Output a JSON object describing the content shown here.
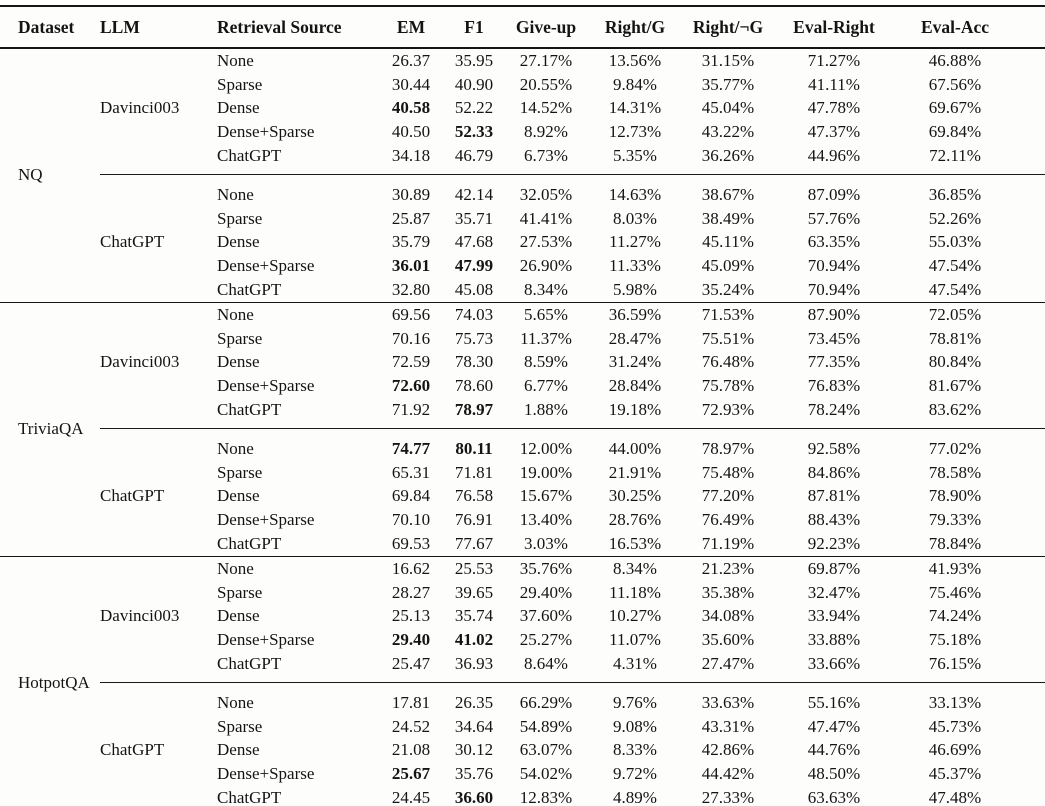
{
  "table": {
    "columns": [
      "Dataset",
      "LLM",
      "Retrieval Source",
      "EM",
      "F1",
      "Give-up",
      "Right/G",
      "Right/¬G",
      "Eval-Right",
      "Eval-Acc"
    ],
    "metric_keys": [
      "em",
      "f1",
      "give_up",
      "right_g",
      "right_ng",
      "eval_right",
      "eval_acc"
    ],
    "sections": [
      {
        "dataset": "NQ",
        "groups": [
          {
            "llm": "Davinci003",
            "rows": [
              {
                "source": "None",
                "em": "26.37",
                "f1": "35.95",
                "give_up": "27.17%",
                "right_g": "13.56%",
                "right_ng": "31.15%",
                "eval_right": "71.27%",
                "eval_acc": "46.88%",
                "bold": []
              },
              {
                "source": "Sparse",
                "em": "30.44",
                "f1": "40.90",
                "give_up": "20.55%",
                "right_g": "9.84%",
                "right_ng": "35.77%",
                "eval_right": "41.11%",
                "eval_acc": "67.56%",
                "bold": []
              },
              {
                "source": "Dense",
                "em": "40.58",
                "f1": "52.22",
                "give_up": "14.52%",
                "right_g": "14.31%",
                "right_ng": "45.04%",
                "eval_right": "47.78%",
                "eval_acc": "69.67%",
                "bold": [
                  "em"
                ]
              },
              {
                "source": "Dense+Sparse",
                "em": "40.50",
                "f1": "52.33",
                "give_up": "8.92%",
                "right_g": "12.73%",
                "right_ng": "43.22%",
                "eval_right": "47.37%",
                "eval_acc": "69.84%",
                "bold": [
                  "f1"
                ]
              },
              {
                "source": "ChatGPT",
                "em": "34.18",
                "f1": "46.79",
                "give_up": "6.73%",
                "right_g": "5.35%",
                "right_ng": "36.26%",
                "eval_right": "44.96%",
                "eval_acc": "72.11%",
                "bold": []
              }
            ]
          },
          {
            "llm": "ChatGPT",
            "rows": [
              {
                "source": "None",
                "em": "30.89",
                "f1": "42.14",
                "give_up": "32.05%",
                "right_g": "14.63%",
                "right_ng": "38.67%",
                "eval_right": "87.09%",
                "eval_acc": "36.85%",
                "bold": []
              },
              {
                "source": "Sparse",
                "em": "25.87",
                "f1": "35.71",
                "give_up": "41.41%",
                "right_g": "8.03%",
                "right_ng": "38.49%",
                "eval_right": "57.76%",
                "eval_acc": "52.26%",
                "bold": []
              },
              {
                "source": "Dense",
                "em": "35.79",
                "f1": "47.68",
                "give_up": "27.53%",
                "right_g": "11.27%",
                "right_ng": "45.11%",
                "eval_right": "63.35%",
                "eval_acc": "55.03%",
                "bold": []
              },
              {
                "source": "Dense+Sparse",
                "em": "36.01",
                "f1": "47.99",
                "give_up": "26.90%",
                "right_g": "11.33%",
                "right_ng": "45.09%",
                "eval_right": "70.94%",
                "eval_acc": "47.54%",
                "bold": [
                  "em",
                  "f1"
                ]
              },
              {
                "source": "ChatGPT",
                "em": "32.80",
                "f1": "45.08",
                "give_up": "8.34%",
                "right_g": "5.98%",
                "right_ng": "35.24%",
                "eval_right": "70.94%",
                "eval_acc": "47.54%",
                "bold": []
              }
            ]
          }
        ]
      },
      {
        "dataset": "TriviaQA",
        "groups": [
          {
            "llm": "Davinci003",
            "rows": [
              {
                "source": "None",
                "em": "69.56",
                "f1": "74.03",
                "give_up": "5.65%",
                "right_g": "36.59%",
                "right_ng": "71.53%",
                "eval_right": "87.90%",
                "eval_acc": "72.05%",
                "bold": []
              },
              {
                "source": "Sparse",
                "em": "70.16",
                "f1": "75.73",
                "give_up": "11.37%",
                "right_g": "28.47%",
                "right_ng": "75.51%",
                "eval_right": "73.45%",
                "eval_acc": "78.81%",
                "bold": []
              },
              {
                "source": "Dense",
                "em": "72.59",
                "f1": "78.30",
                "give_up": "8.59%",
                "right_g": "31.24%",
                "right_ng": "76.48%",
                "eval_right": "77.35%",
                "eval_acc": "80.84%",
                "bold": []
              },
              {
                "source": "Dense+Sparse",
                "em": "72.60",
                "f1": "78.60",
                "give_up": "6.77%",
                "right_g": "28.84%",
                "right_ng": "75.78%",
                "eval_right": "76.83%",
                "eval_acc": "81.67%",
                "bold": [
                  "em"
                ]
              },
              {
                "source": "ChatGPT",
                "em": "71.92",
                "f1": "78.97",
                "give_up": "1.88%",
                "right_g": "19.18%",
                "right_ng": "72.93%",
                "eval_right": "78.24%",
                "eval_acc": "83.62%",
                "bold": [
                  "f1"
                ]
              }
            ]
          },
          {
            "llm": "ChatGPT",
            "rows": [
              {
                "source": "None",
                "em": "74.77",
                "f1": "80.11",
                "give_up": "12.00%",
                "right_g": "44.00%",
                "right_ng": "78.97%",
                "eval_right": "92.58%",
                "eval_acc": "77.02%",
                "bold": [
                  "em",
                  "f1"
                ]
              },
              {
                "source": "Sparse",
                "em": "65.31",
                "f1": "71.81",
                "give_up": "19.00%",
                "right_g": "21.91%",
                "right_ng": "75.48%",
                "eval_right": "84.86%",
                "eval_acc": "78.58%",
                "bold": []
              },
              {
                "source": "Dense",
                "em": "69.84",
                "f1": "76.58",
                "give_up": "15.67%",
                "right_g": "30.25%",
                "right_ng": "77.20%",
                "eval_right": "87.81%",
                "eval_acc": "78.90%",
                "bold": []
              },
              {
                "source": "Dense+Sparse",
                "em": "70.10",
                "f1": "76.91",
                "give_up": "13.40%",
                "right_g": "28.76%",
                "right_ng": "76.49%",
                "eval_right": "88.43%",
                "eval_acc": "79.33%",
                "bold": []
              },
              {
                "source": "ChatGPT",
                "em": "69.53",
                "f1": "77.67",
                "give_up": "3.03%",
                "right_g": "16.53%",
                "right_ng": "71.19%",
                "eval_right": "92.23%",
                "eval_acc": "78.84%",
                "bold": []
              }
            ]
          }
        ]
      },
      {
        "dataset": "HotpotQA",
        "groups": [
          {
            "llm": "Davinci003",
            "rows": [
              {
                "source": "None",
                "em": "16.62",
                "f1": "25.53",
                "give_up": "35.76%",
                "right_g": "8.34%",
                "right_ng": "21.23%",
                "eval_right": "69.87%",
                "eval_acc": "41.93%",
                "bold": []
              },
              {
                "source": "Sparse",
                "em": "28.27",
                "f1": "39.65",
                "give_up": "29.40%",
                "right_g": "11.18%",
                "right_ng": "35.38%",
                "eval_right": "32.47%",
                "eval_acc": "75.46%",
                "bold": []
              },
              {
                "source": "Dense",
                "em": "25.13",
                "f1": "35.74",
                "give_up": "37.60%",
                "right_g": "10.27%",
                "right_ng": "34.08%",
                "eval_right": "33.94%",
                "eval_acc": "74.24%",
                "bold": []
              },
              {
                "source": "Dense+Sparse",
                "em": "29.40",
                "f1": "41.02",
                "give_up": "25.27%",
                "right_g": "11.07%",
                "right_ng": "35.60%",
                "eval_right": "33.88%",
                "eval_acc": "75.18%",
                "bold": [
                  "em",
                  "f1"
                ]
              },
              {
                "source": "ChatGPT",
                "em": "25.47",
                "f1": "36.93",
                "give_up": "8.64%",
                "right_g": "4.31%",
                "right_ng": "27.47%",
                "eval_right": "33.66%",
                "eval_acc": "76.15%",
                "bold": []
              }
            ]
          },
          {
            "llm": "ChatGPT",
            "rows": [
              {
                "source": "None",
                "em": "17.81",
                "f1": "26.35",
                "give_up": "66.29%",
                "right_g": "9.76%",
                "right_ng": "33.63%",
                "eval_right": "55.16%",
                "eval_acc": "33.13%",
                "bold": []
              },
              {
                "source": "Sparse",
                "em": "24.52",
                "f1": "34.64",
                "give_up": "54.89%",
                "right_g": "9.08%",
                "right_ng": "43.31%",
                "eval_right": "47.47%",
                "eval_acc": "45.73%",
                "bold": []
              },
              {
                "source": "Dense",
                "em": "21.08",
                "f1": "30.12",
                "give_up": "63.07%",
                "right_g": "8.33%",
                "right_ng": "42.86%",
                "eval_right": "44.76%",
                "eval_acc": "46.69%",
                "bold": []
              },
              {
                "source": "Dense+Sparse",
                "em": "25.67",
                "f1": "35.76",
                "give_up": "54.02%",
                "right_g": "9.72%",
                "right_ng": "44.42%",
                "eval_right": "48.50%",
                "eval_acc": "45.37%",
                "bold": [
                  "em"
                ]
              },
              {
                "source": "ChatGPT",
                "em": "24.45",
                "f1": "36.60",
                "give_up": "12.83%",
                "right_g": "4.89%",
                "right_ng": "27.33%",
                "eval_right": "63.63%",
                "eval_acc": "47.48%",
                "bold": [
                  "f1"
                ]
              }
            ]
          }
        ]
      }
    ]
  }
}
